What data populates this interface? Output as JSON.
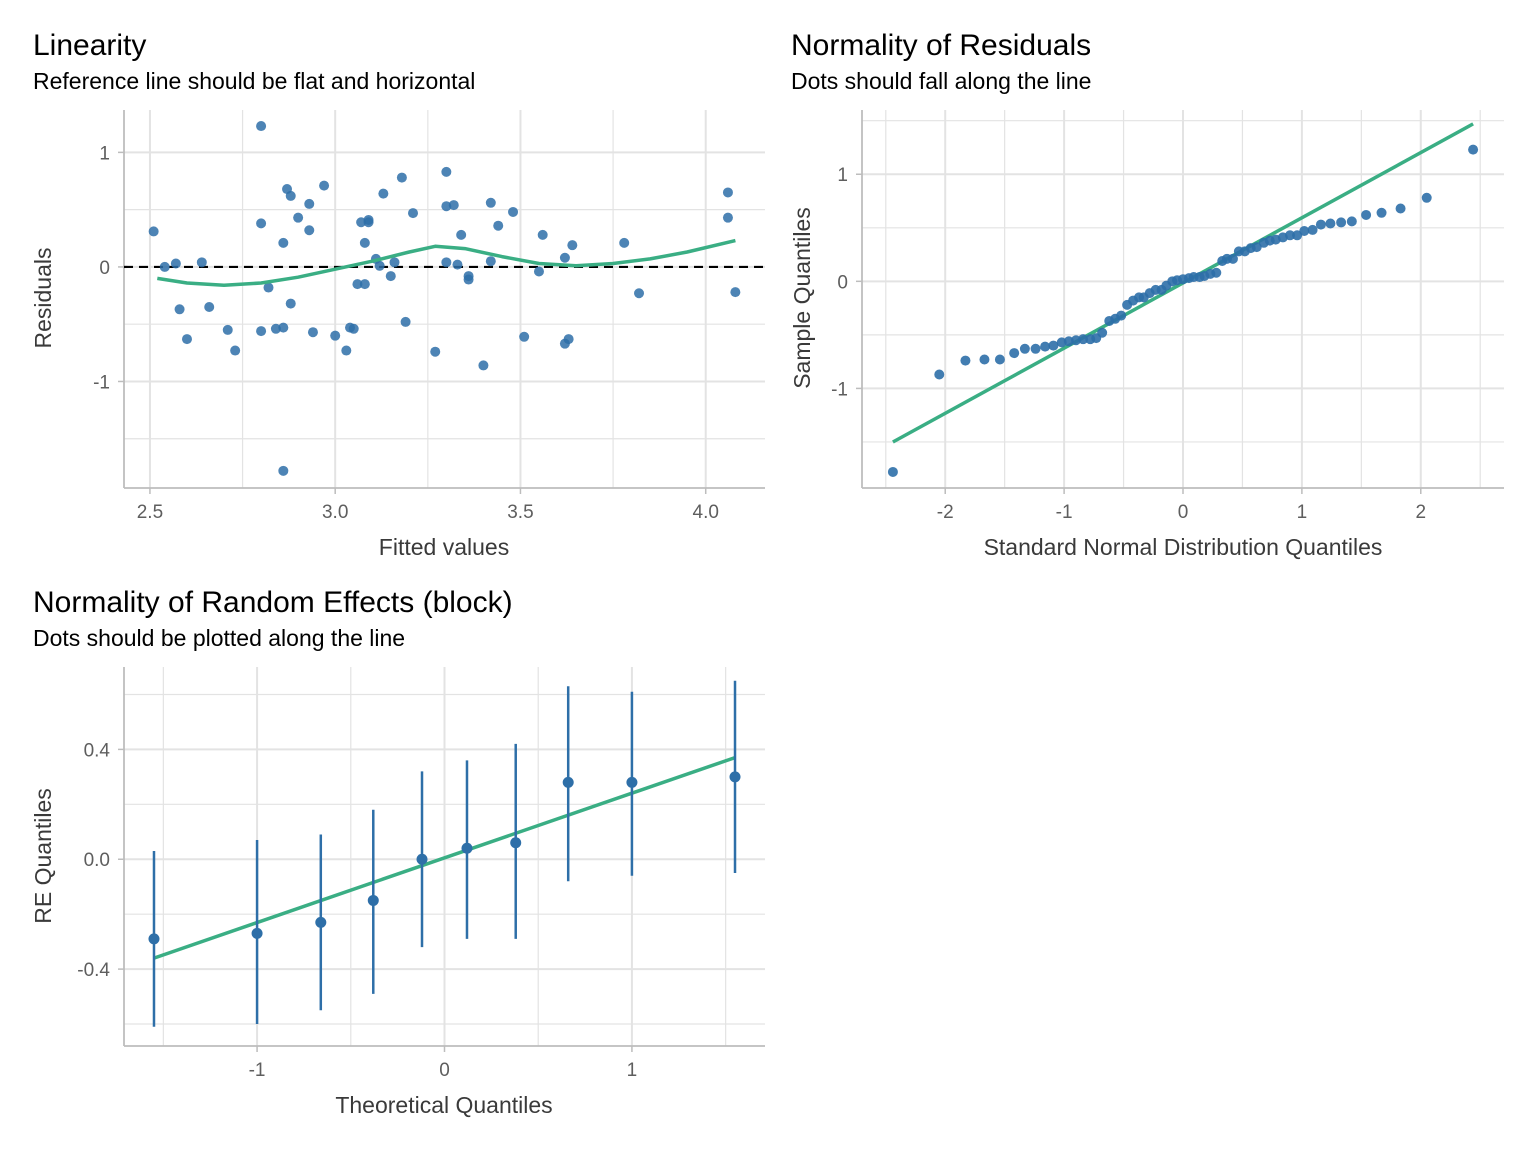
{
  "colors": {
    "point": "#2E6FA8",
    "fit_line": "#3AAE84",
    "reference_line": "#000000",
    "grid": "#E3E3E3",
    "axis": "#BDBDBD"
  },
  "chart_data": [
    {
      "id": "linearity",
      "type": "scatter",
      "title": "Linearity",
      "subtitle": "Reference line should be flat and horizontal",
      "xlabel": "Fitted values",
      "ylabel": "Residuals",
      "xlim": [
        2.43,
        4.16
      ],
      "ylim": [
        -1.93,
        1.37
      ],
      "xticks": [
        2.5,
        3.0,
        3.5,
        4.0
      ],
      "xtick_labels": [
        "2.5",
        "3.0",
        "3.5",
        "4.0"
      ],
      "yticks": [
        -1,
        0,
        1
      ],
      "ytick_labels": [
        "-1",
        "0",
        "1"
      ],
      "reference_line_y": 0,
      "points": [
        [
          2.51,
          0.31
        ],
        [
          2.54,
          0.0
        ],
        [
          2.57,
          0.03
        ],
        [
          2.58,
          -0.37
        ],
        [
          2.6,
          -0.63
        ],
        [
          2.64,
          0.04
        ],
        [
          2.66,
          -0.35
        ],
        [
          2.71,
          -0.55
        ],
        [
          2.73,
          -0.73
        ],
        [
          2.8,
          1.23
        ],
        [
          2.8,
          0.38
        ],
        [
          2.8,
          -0.56
        ],
        [
          2.82,
          -0.18
        ],
        [
          2.84,
          -0.54
        ],
        [
          2.86,
          0.21
        ],
        [
          2.86,
          -0.53
        ],
        [
          2.86,
          -1.78
        ],
        [
          2.87,
          0.68
        ],
        [
          2.88,
          0.62
        ],
        [
          2.88,
          -0.32
        ],
        [
          2.9,
          0.43
        ],
        [
          2.93,
          0.55
        ],
        [
          2.93,
          0.32
        ],
        [
          2.94,
          -0.57
        ],
        [
          2.97,
          0.71
        ],
        [
          3.0,
          -0.6
        ],
        [
          3.03,
          -0.73
        ],
        [
          3.04,
          -0.53
        ],
        [
          3.05,
          -0.54
        ],
        [
          3.06,
          -0.15
        ],
        [
          3.07,
          0.39
        ],
        [
          3.08,
          -0.15
        ],
        [
          3.08,
          0.21
        ],
        [
          3.09,
          0.41
        ],
        [
          3.09,
          0.39
        ],
        [
          3.11,
          0.07
        ],
        [
          3.12,
          0.01
        ],
        [
          3.13,
          0.64
        ],
        [
          3.15,
          -0.08
        ],
        [
          3.16,
          0.04
        ],
        [
          3.18,
          0.78
        ],
        [
          3.19,
          -0.48
        ],
        [
          3.21,
          0.47
        ],
        [
          3.27,
          -0.74
        ],
        [
          3.3,
          0.83
        ],
        [
          3.3,
          0.53
        ],
        [
          3.3,
          0.04
        ],
        [
          3.32,
          0.54
        ],
        [
          3.33,
          0.02
        ],
        [
          3.34,
          0.28
        ],
        [
          3.36,
          -0.08
        ],
        [
          3.36,
          -0.11
        ],
        [
          3.4,
          -0.86
        ],
        [
          3.42,
          0.56
        ],
        [
          3.42,
          0.05
        ],
        [
          3.44,
          0.36
        ],
        [
          3.48,
          0.48
        ],
        [
          3.51,
          -0.61
        ],
        [
          3.55,
          -0.04
        ],
        [
          3.56,
          0.28
        ],
        [
          3.62,
          0.08
        ],
        [
          3.62,
          -0.67
        ],
        [
          3.63,
          -0.63
        ],
        [
          3.64,
          0.19
        ],
        [
          3.78,
          0.21
        ],
        [
          3.82,
          -0.23
        ],
        [
          4.06,
          0.65
        ],
        [
          4.06,
          0.43
        ],
        [
          4.08,
          -0.22
        ]
      ],
      "smooth_line": [
        [
          2.52,
          -0.1
        ],
        [
          2.6,
          -0.14
        ],
        [
          2.7,
          -0.16
        ],
        [
          2.8,
          -0.14
        ],
        [
          2.9,
          -0.09
        ],
        [
          3.0,
          -0.02
        ],
        [
          3.1,
          0.05
        ],
        [
          3.2,
          0.13
        ],
        [
          3.27,
          0.18
        ],
        [
          3.35,
          0.16
        ],
        [
          3.45,
          0.09
        ],
        [
          3.55,
          0.03
        ],
        [
          3.65,
          0.01
        ],
        [
          3.75,
          0.03
        ],
        [
          3.85,
          0.07
        ],
        [
          3.95,
          0.13
        ],
        [
          4.08,
          0.23
        ]
      ]
    },
    {
      "id": "normality_residuals",
      "type": "scatter",
      "title": "Normality of Residuals",
      "subtitle": "Dots should fall along the line",
      "xlabel": "Standard Normal Distribution Quantiles",
      "ylabel": "Sample Quantiles",
      "xlim": [
        -2.7,
        2.7
      ],
      "ylim": [
        -1.93,
        1.6
      ],
      "xticks": [
        -2,
        -1,
        0,
        1,
        2
      ],
      "xtick_labels": [
        "-2",
        "-1",
        "0",
        "1",
        "2"
      ],
      "yticks": [
        -1,
        0,
        1
      ],
      "ytick_labels": [
        "-1",
        "0",
        "1"
      ],
      "points": [
        [
          -2.44,
          -1.78
        ],
        [
          -2.05,
          -0.87
        ],
        [
          -1.83,
          -0.74
        ],
        [
          -1.67,
          -0.73
        ],
        [
          -1.54,
          -0.73
        ],
        [
          -1.42,
          -0.67
        ],
        [
          -1.33,
          -0.63
        ],
        [
          -1.24,
          -0.63
        ],
        [
          -1.16,
          -0.61
        ],
        [
          -1.09,
          -0.6
        ],
        [
          -1.02,
          -0.57
        ],
        [
          -0.96,
          -0.56
        ],
        [
          -0.9,
          -0.55
        ],
        [
          -0.84,
          -0.54
        ],
        [
          -0.78,
          -0.54
        ],
        [
          -0.73,
          -0.53
        ],
        [
          -0.68,
          -0.48
        ],
        [
          -0.62,
          -0.37
        ],
        [
          -0.57,
          -0.35
        ],
        [
          -0.52,
          -0.32
        ],
        [
          -0.47,
          -0.22
        ],
        [
          -0.42,
          -0.18
        ],
        [
          -0.37,
          -0.15
        ],
        [
          -0.33,
          -0.15
        ],
        [
          -0.28,
          -0.11
        ],
        [
          -0.23,
          -0.08
        ],
        [
          -0.18,
          -0.08
        ],
        [
          -0.14,
          -0.04
        ],
        [
          -0.09,
          0.0
        ],
        [
          -0.05,
          0.01
        ],
        [
          0.0,
          0.02
        ],
        [
          0.05,
          0.03
        ],
        [
          0.09,
          0.04
        ],
        [
          0.14,
          0.04
        ],
        [
          0.18,
          0.05
        ],
        [
          0.23,
          0.07
        ],
        [
          0.28,
          0.08
        ],
        [
          0.33,
          0.19
        ],
        [
          0.37,
          0.21
        ],
        [
          0.42,
          0.21
        ],
        [
          0.47,
          0.28
        ],
        [
          0.52,
          0.28
        ],
        [
          0.57,
          0.31
        ],
        [
          0.62,
          0.32
        ],
        [
          0.68,
          0.36
        ],
        [
          0.73,
          0.38
        ],
        [
          0.78,
          0.39
        ],
        [
          0.84,
          0.41
        ],
        [
          0.9,
          0.43
        ],
        [
          0.96,
          0.43
        ],
        [
          1.02,
          0.47
        ],
        [
          1.09,
          0.48
        ],
        [
          1.16,
          0.53
        ],
        [
          1.24,
          0.54
        ],
        [
          1.33,
          0.55
        ],
        [
          1.42,
          0.56
        ],
        [
          1.54,
          0.62
        ],
        [
          1.67,
          0.64
        ],
        [
          1.83,
          0.68
        ],
        [
          2.05,
          0.78
        ],
        [
          2.44,
          1.23
        ]
      ],
      "reference_line": [
        [
          -2.44,
          -1.5
        ],
        [
          2.44,
          1.47
        ]
      ]
    },
    {
      "id": "normality_random_effects",
      "type": "scatter",
      "title": "Normality of Random Effects (block)",
      "subtitle": "Dots should be plotted along the line",
      "xlabel": "Theoretical Quantiles",
      "ylabel": "RE Quantiles",
      "xlim": [
        -1.71,
        1.71
      ],
      "ylim": [
        -0.68,
        0.7
      ],
      "xticks": [
        -1,
        0,
        1
      ],
      "xtick_labels": [
        "-1",
        "0",
        "1"
      ],
      "minor_xticks": [
        -1.5,
        -0.5,
        0.5,
        1.5
      ],
      "yticks": [
        -0.4,
        0.0,
        0.4
      ],
      "ytick_labels": [
        "-0.4",
        "0.0",
        "0.4"
      ],
      "points": [
        {
          "x": -1.55,
          "y": -0.29,
          "lower": -0.61,
          "upper": 0.03
        },
        {
          "x": -1.0,
          "y": -0.27,
          "lower": -0.6,
          "upper": 0.07
        },
        {
          "x": -0.66,
          "y": -0.23,
          "lower": -0.55,
          "upper": 0.09
        },
        {
          "x": -0.38,
          "y": -0.15,
          "lower": -0.49,
          "upper": 0.18
        },
        {
          "x": -0.12,
          "y": 0.0,
          "lower": -0.32,
          "upper": 0.32
        },
        {
          "x": 0.12,
          "y": 0.04,
          "lower": -0.29,
          "upper": 0.36
        },
        {
          "x": 0.38,
          "y": 0.06,
          "lower": -0.29,
          "upper": 0.42
        },
        {
          "x": 0.66,
          "y": 0.28,
          "lower": -0.08,
          "upper": 0.63
        },
        {
          "x": 1.0,
          "y": 0.28,
          "lower": -0.06,
          "upper": 0.61
        },
        {
          "x": 1.55,
          "y": 0.3,
          "lower": -0.05,
          "upper": 0.65
        }
      ],
      "reference_line": [
        [
          -1.55,
          -0.36
        ],
        [
          1.55,
          0.37
        ]
      ]
    }
  ]
}
